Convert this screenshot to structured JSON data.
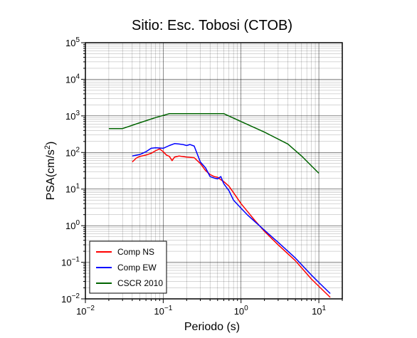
{
  "chart_data": {
    "type": "line",
    "title": "Sitio: Esc. Tobosi (CTOB)",
    "xlabel": "Periodo (s)",
    "ylabel_base": "PSA(cm/s",
    "ylabel_sup": "2",
    "ylabel_close": ")",
    "x_scale": "log",
    "y_scale": "log",
    "xlim": [
      0.01,
      20
    ],
    "ylim": [
      0.01,
      100000
    ],
    "grid": true,
    "legend_position": "bottom-left",
    "x_ticks": [
      {
        "value": 0.01,
        "base": "10",
        "exp": "−2"
      },
      {
        "value": 0.1,
        "base": "10",
        "exp": "−1"
      },
      {
        "value": 1,
        "base": "10",
        "exp": "0"
      },
      {
        "value": 10,
        "base": "10",
        "exp": "1"
      }
    ],
    "y_ticks": [
      {
        "value": 0.01,
        "base": "10",
        "exp": "−2"
      },
      {
        "value": 0.1,
        "base": "10",
        "exp": "−1"
      },
      {
        "value": 1,
        "base": "10",
        "exp": "0"
      },
      {
        "value": 10,
        "base": "10",
        "exp": "1"
      },
      {
        "value": 100,
        "base": "10",
        "exp": "2"
      },
      {
        "value": 1000,
        "base": "10",
        "exp": "3"
      },
      {
        "value": 10000,
        "base": "10",
        "exp": "4"
      },
      {
        "value": 100000,
        "base": "10",
        "exp": "5"
      }
    ],
    "series": [
      {
        "name": "Comp NS",
        "color": "#ff0000",
        "points": [
          [
            0.04,
            55
          ],
          [
            0.045,
            70
          ],
          [
            0.05,
            78
          ],
          [
            0.06,
            85
          ],
          [
            0.07,
            95
          ],
          [
            0.08,
            112
          ],
          [
            0.09,
            125
          ],
          [
            0.1,
            105
          ],
          [
            0.11,
            85
          ],
          [
            0.12,
            78
          ],
          [
            0.13,
            60
          ],
          [
            0.14,
            75
          ],
          [
            0.16,
            80
          ],
          [
            0.2,
            75
          ],
          [
            0.25,
            72
          ],
          [
            0.3,
            50
          ],
          [
            0.35,
            32
          ],
          [
            0.4,
            25
          ],
          [
            0.45,
            22
          ],
          [
            0.5,
            21
          ],
          [
            0.55,
            18
          ],
          [
            0.6,
            16
          ],
          [
            0.7,
            12
          ],
          [
            0.8,
            8
          ],
          [
            1.0,
            4
          ],
          [
            1.2,
            2.5
          ],
          [
            1.5,
            1.4
          ],
          [
            2.0,
            0.7
          ],
          [
            3.0,
            0.3
          ],
          [
            5.0,
            0.11
          ],
          [
            8.0,
            0.035
          ],
          [
            10,
            0.022
          ],
          [
            14,
            0.011
          ]
        ]
      },
      {
        "name": "Comp EW",
        "color": "#0000ff",
        "points": [
          [
            0.04,
            80
          ],
          [
            0.05,
            88
          ],
          [
            0.06,
            105
          ],
          [
            0.07,
            130
          ],
          [
            0.08,
            135
          ],
          [
            0.1,
            130
          ],
          [
            0.12,
            155
          ],
          [
            0.14,
            175
          ],
          [
            0.16,
            170
          ],
          [
            0.18,
            165
          ],
          [
            0.2,
            155
          ],
          [
            0.22,
            165
          ],
          [
            0.25,
            150
          ],
          [
            0.3,
            55
          ],
          [
            0.35,
            38
          ],
          [
            0.4,
            22
          ],
          [
            0.45,
            20
          ],
          [
            0.5,
            19
          ],
          [
            0.55,
            22
          ],
          [
            0.6,
            14
          ],
          [
            0.7,
            9
          ],
          [
            0.8,
            5
          ],
          [
            1.0,
            3
          ],
          [
            1.2,
            2
          ],
          [
            1.5,
            1.3
          ],
          [
            2.0,
            0.75
          ],
          [
            3.0,
            0.35
          ],
          [
            5.0,
            0.13
          ],
          [
            8.0,
            0.045
          ],
          [
            10,
            0.028
          ],
          [
            14,
            0.014
          ]
        ]
      },
      {
        "name": "CSCR 2010",
        "color": "#006400",
        "points": [
          [
            0.02,
            450
          ],
          [
            0.03,
            450
          ],
          [
            0.05,
            650
          ],
          [
            0.08,
            900
          ],
          [
            0.12,
            1150
          ],
          [
            0.6,
            1150
          ],
          [
            1.0,
            700
          ],
          [
            2.0,
            360
          ],
          [
            4.0,
            170
          ],
          [
            6.0,
            80
          ],
          [
            10,
            27
          ]
        ]
      }
    ]
  }
}
